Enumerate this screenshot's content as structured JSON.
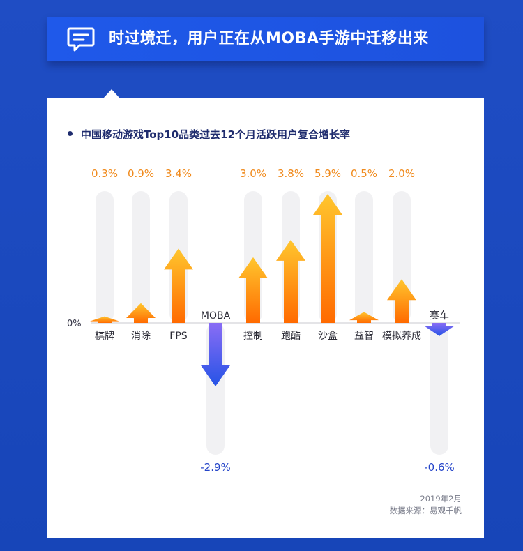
{
  "banner": {
    "icon": "message-icon",
    "title": "时过境迁，用户正在从MOBA手游中迁移出来"
  },
  "chart_title": "中国移动游戏Top10品类过去12个月活跃用户复合增长率",
  "chart_data": {
    "type": "bar",
    "title": "中国移动游戏Top10品类过去12个月活跃用户复合增长率",
    "categories": [
      "棋牌",
      "消除",
      "FPS",
      "MOBA",
      "控制",
      "跑酷",
      "沙盒",
      "益智",
      "模拟养成",
      "赛车"
    ],
    "values": [
      0.3,
      0.9,
      3.4,
      -2.9,
      3.0,
      3.8,
      5.9,
      0.5,
      2.0,
      -0.6
    ],
    "value_labels": [
      "0.3%",
      "0.9%",
      "3.4%",
      "-2.9%",
      "3.0%",
      "3.8%",
      "5.9%",
      "0.5%",
      "2.0%",
      "-0.6%"
    ],
    "zero_label": "0%",
    "xlabel": "",
    "ylabel": "",
    "grid": false,
    "colors": {
      "positive_top": "#ffc62e",
      "positive_bottom": "#ff6a00",
      "negative_top": "#8a6df5",
      "negative_bottom": "#2553e6",
      "positive_label": "#f08a1c",
      "negative_label": "#2545c9",
      "track": "#f1f1f3",
      "axis": "#c9c9cf"
    }
  },
  "footer": {
    "date": "2019年2月",
    "source": "数据来源：易观千帆"
  }
}
